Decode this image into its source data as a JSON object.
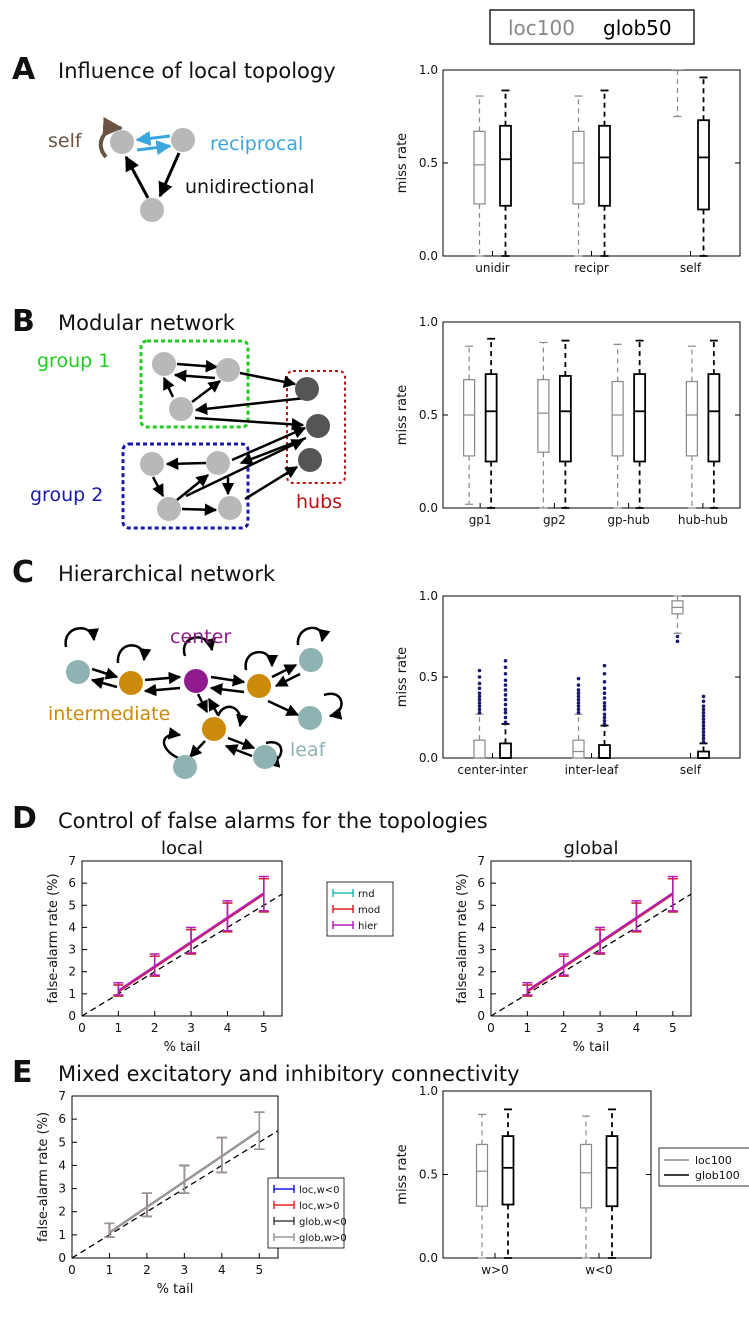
{
  "header_legend": {
    "loc": "loc100",
    "glob": "glob50"
  },
  "panels": {
    "A": {
      "letter": "A",
      "title": "Influence of local topology"
    },
    "B": {
      "letter": "B",
      "title": "Modular network"
    },
    "C": {
      "letter": "C",
      "title": "Hierarchical network"
    },
    "D": {
      "letter": "D",
      "title": "Control of false alarms for the topologies"
    },
    "E": {
      "letter": "E",
      "title": "Mixed excitatory and inhibitory connectivity"
    }
  },
  "diagrams": {
    "A": {
      "self": "self",
      "reciprocal": "reciprocal",
      "unidirectional": "unidirectional"
    },
    "B": {
      "group1": "group 1",
      "group2": "group 2",
      "hubs": "hubs"
    },
    "C": {
      "center": "center",
      "intermediate": "intermediate",
      "leaf": "leaf"
    }
  },
  "colors": {
    "loc": "#888888",
    "glob": "#000000",
    "reciprocal": "#3aa6dd",
    "self": "#6b5344",
    "group1": "#22cc22",
    "group2": "#1a1aaa",
    "hubs": "#bb1111",
    "center": "#8e1a8e",
    "intermediate": "#cc8a0a",
    "leaf": "#8fb3b3",
    "node_grey": "#b8b8b8",
    "hub_node": "#555555",
    "rnd": "#22bbbb",
    "mod": "#dd2222",
    "hier": "#b81cb8",
    "loc_wneg": "#1a1aee",
    "loc_wpos": "#ee2222",
    "glob_wneg": "#444444",
    "glob_wpos": "#999999"
  },
  "chart_data": [
    {
      "id": "A",
      "type": "box",
      "ylabel": "miss rate",
      "ylim": [
        0,
        1
      ],
      "yticks": [
        0.0,
        0.5,
        1.0
      ],
      "yticklabels": [
        "0.0",
        "0.5",
        "1.0"
      ],
      "categories": [
        "unidir",
        "recipr",
        "self"
      ],
      "series": [
        {
          "name": "loc100",
          "boxes": [
            {
              "whislo": 0.0,
              "q1": 0.28,
              "med": 0.49,
              "q3": 0.67,
              "whishi": 0.86
            },
            {
              "whislo": 0.0,
              "q1": 0.28,
              "med": 0.5,
              "q3": 0.67,
              "whishi": 0.86
            },
            {
              "whislo": 0.75,
              "q1": 1.0,
              "med": 1.0,
              "q3": 1.0,
              "whishi": 1.0
            }
          ]
        },
        {
          "name": "glob50",
          "boxes": [
            {
              "whislo": 0.0,
              "q1": 0.27,
              "med": 0.52,
              "q3": 0.7,
              "whishi": 0.89
            },
            {
              "whislo": 0.0,
              "q1": 0.27,
              "med": 0.53,
              "q3": 0.7,
              "whishi": 0.89
            },
            {
              "whislo": 0.0,
              "q1": 0.25,
              "med": 0.53,
              "q3": 0.73,
              "whishi": 0.96
            }
          ]
        }
      ]
    },
    {
      "id": "B",
      "type": "box",
      "ylabel": "miss rate",
      "ylim": [
        0,
        1
      ],
      "yticks": [
        0.0,
        0.5,
        1.0
      ],
      "yticklabels": [
        "0.0",
        "0.5",
        "1.0"
      ],
      "categories": [
        "gp1",
        "gp2",
        "gp-hub",
        "hub-hub"
      ],
      "series": [
        {
          "name": "loc100",
          "boxes": [
            {
              "whislo": 0.02,
              "q1": 0.28,
              "med": 0.5,
              "q3": 0.69,
              "whishi": 0.87
            },
            {
              "whislo": 0.0,
              "q1": 0.3,
              "med": 0.51,
              "q3": 0.69,
              "whishi": 0.89
            },
            {
              "whislo": 0.0,
              "q1": 0.28,
              "med": 0.5,
              "q3": 0.68,
              "whishi": 0.88
            },
            {
              "whislo": 0.0,
              "q1": 0.28,
              "med": 0.5,
              "q3": 0.68,
              "whishi": 0.87
            }
          ]
        },
        {
          "name": "glob50",
          "boxes": [
            {
              "whislo": 0.0,
              "q1": 0.25,
              "med": 0.52,
              "q3": 0.72,
              "whishi": 0.91
            },
            {
              "whislo": 0.0,
              "q1": 0.25,
              "med": 0.52,
              "q3": 0.71,
              "whishi": 0.9
            },
            {
              "whislo": 0.0,
              "q1": 0.25,
              "med": 0.52,
              "q3": 0.72,
              "whishi": 0.9
            },
            {
              "whislo": 0.0,
              "q1": 0.25,
              "med": 0.52,
              "q3": 0.72,
              "whishi": 0.9
            }
          ]
        }
      ]
    },
    {
      "id": "C",
      "type": "box",
      "ylabel": "miss rate",
      "ylim": [
        0,
        1
      ],
      "yticks": [
        0.0,
        0.5,
        1.0
      ],
      "yticklabels": [
        "0.0",
        "0.5",
        "1.0"
      ],
      "categories": [
        "center-inter",
        "inter-leaf",
        "self"
      ],
      "series": [
        {
          "name": "loc100",
          "boxes": [
            {
              "whislo": 0.0,
              "q1": 0.0,
              "med": 0.0,
              "q3": 0.11,
              "whishi": 0.27,
              "fliers": [
                0.28,
                0.3,
                0.32,
                0.34,
                0.36,
                0.38,
                0.4,
                0.43,
                0.46,
                0.5,
                0.54
              ]
            },
            {
              "whislo": 0.0,
              "q1": 0.0,
              "med": 0.04,
              "q3": 0.11,
              "whishi": 0.27,
              "fliers": [
                0.28,
                0.3,
                0.32,
                0.34,
                0.36,
                0.38,
                0.4,
                0.42,
                0.45,
                0.49
              ]
            },
            {
              "whislo": 0.77,
              "q1": 0.89,
              "med": 0.93,
              "q3": 0.97,
              "whishi": 1.0,
              "fliers": [
                0.72,
                0.75
              ]
            }
          ]
        },
        {
          "name": "glob50",
          "boxes": [
            {
              "whislo": 0.0,
              "q1": 0.0,
              "med": 0.0,
              "q3": 0.09,
              "whishi": 0.21,
              "fliers": [
                0.22,
                0.25,
                0.28,
                0.3,
                0.33,
                0.36,
                0.39,
                0.42,
                0.45,
                0.48,
                0.52,
                0.56,
                0.6
              ]
            },
            {
              "whislo": 0.0,
              "q1": 0.0,
              "med": 0.0,
              "q3": 0.08,
              "whishi": 0.2,
              "fliers": [
                0.21,
                0.23,
                0.25,
                0.27,
                0.3,
                0.32,
                0.34,
                0.37,
                0.4,
                0.43,
                0.47,
                0.52,
                0.57
              ]
            },
            {
              "whislo": 0.0,
              "q1": 0.0,
              "med": 0.0,
              "q3": 0.04,
              "whishi": 0.09,
              "fliers": [
                0.1,
                0.12,
                0.14,
                0.16,
                0.18,
                0.2,
                0.22,
                0.24,
                0.26,
                0.28,
                0.3,
                0.32,
                0.35,
                0.38
              ]
            }
          ]
        }
      ]
    },
    {
      "id": "D-local",
      "type": "line",
      "title": "local",
      "xlabel": "% tail",
      "ylabel": "false-alarm rate (%)",
      "xlim": [
        0,
        5.5
      ],
      "ylim": [
        0,
        7
      ],
      "xticks": [
        0,
        1,
        2,
        3,
        4,
        5
      ],
      "yticks": [
        0,
        1,
        2,
        3,
        4,
        5,
        6,
        7
      ],
      "x": [
        1,
        2,
        3,
        4,
        5
      ],
      "reference_line": {
        "style": "dashed",
        "x": [
          0,
          5.5
        ],
        "y": [
          0,
          5.5
        ]
      },
      "series": [
        {
          "name": "rnd",
          "y": [
            1.1,
            2.2,
            3.3,
            4.4,
            5.5
          ],
          "ylow": [
            0.9,
            1.8,
            2.8,
            3.8,
            4.7
          ],
          "yhigh": [
            1.4,
            2.7,
            3.9,
            5.1,
            6.2
          ]
        },
        {
          "name": "mod",
          "y": [
            1.1,
            2.2,
            3.3,
            4.4,
            5.5
          ],
          "ylow": [
            0.9,
            1.8,
            2.8,
            3.8,
            4.7
          ],
          "yhigh": [
            1.4,
            2.7,
            3.9,
            5.1,
            6.2
          ]
        },
        {
          "name": "hier",
          "y": [
            1.15,
            2.25,
            3.35,
            4.45,
            5.55
          ],
          "ylow": [
            0.95,
            1.85,
            2.85,
            3.85,
            4.75
          ],
          "yhigh": [
            1.5,
            2.8,
            4.0,
            5.2,
            6.3
          ]
        }
      ]
    },
    {
      "id": "D-global",
      "type": "line",
      "title": "global",
      "xlabel": "% tail",
      "ylabel": "false-alarm rate (%)",
      "xlim": [
        0,
        5.5
      ],
      "ylim": [
        0,
        7
      ],
      "xticks": [
        0,
        1,
        2,
        3,
        4,
        5
      ],
      "yticks": [
        0,
        1,
        2,
        3,
        4,
        5,
        6,
        7
      ],
      "x": [
        1,
        2,
        3,
        4,
        5
      ],
      "reference_line": {
        "style": "dashed",
        "x": [
          0,
          5.5
        ],
        "y": [
          0,
          5.5
        ]
      },
      "series": [
        {
          "name": "rnd",
          "y": [
            1.1,
            2.2,
            3.3,
            4.4,
            5.5
          ],
          "ylow": [
            0.9,
            1.8,
            2.8,
            3.8,
            4.7
          ],
          "yhigh": [
            1.4,
            2.7,
            3.9,
            5.1,
            6.2
          ]
        },
        {
          "name": "mod",
          "y": [
            1.1,
            2.2,
            3.3,
            4.4,
            5.5
          ],
          "ylow": [
            0.9,
            1.8,
            2.8,
            3.8,
            4.7
          ],
          "yhigh": [
            1.4,
            2.7,
            3.9,
            5.1,
            6.2
          ]
        },
        {
          "name": "hier",
          "y": [
            1.15,
            2.25,
            3.35,
            4.45,
            5.55
          ],
          "ylow": [
            0.95,
            1.85,
            2.85,
            3.85,
            4.75
          ],
          "yhigh": [
            1.5,
            2.8,
            4.0,
            5.2,
            6.3
          ]
        }
      ]
    },
    {
      "id": "E-fa",
      "type": "line",
      "xlabel": "% tail",
      "ylabel": "false-alarm rate (%)",
      "xlim": [
        0,
        5.5
      ],
      "ylim": [
        0,
        7
      ],
      "xticks": [
        0,
        1,
        2,
        3,
        4,
        5
      ],
      "yticks": [
        0,
        1,
        2,
        3,
        4,
        5,
        6,
        7
      ],
      "x": [
        1,
        2,
        3,
        4,
        5
      ],
      "reference_line": {
        "style": "dashed",
        "x": [
          0,
          5.5
        ],
        "y": [
          0,
          5.5
        ]
      },
      "series": [
        {
          "name": "loc,w<0",
          "y": [
            1.1,
            2.2,
            3.3,
            4.4,
            5.5
          ],
          "ylow": [
            0.9,
            1.8,
            2.8,
            3.7,
            4.7
          ],
          "yhigh": [
            1.5,
            2.8,
            4.0,
            5.2,
            6.3
          ]
        },
        {
          "name": "loc,w>0",
          "y": [
            1.1,
            2.2,
            3.3,
            4.4,
            5.5
          ],
          "ylow": [
            0.9,
            1.8,
            2.8,
            3.7,
            4.7
          ],
          "yhigh": [
            1.5,
            2.8,
            4.0,
            5.2,
            6.3
          ]
        },
        {
          "name": "glob,w<0",
          "y": [
            1.1,
            2.2,
            3.3,
            4.4,
            5.5
          ],
          "ylow": [
            0.9,
            1.8,
            2.8,
            3.7,
            4.7
          ],
          "yhigh": [
            1.5,
            2.8,
            4.0,
            5.2,
            6.3
          ]
        },
        {
          "name": "glob,w>0",
          "y": [
            1.1,
            2.2,
            3.3,
            4.4,
            5.5
          ],
          "ylow": [
            0.9,
            1.8,
            2.8,
            3.7,
            4.7
          ],
          "yhigh": [
            1.5,
            2.8,
            4.0,
            5.2,
            6.3
          ]
        }
      ]
    },
    {
      "id": "E-miss",
      "type": "box",
      "ylabel": "miss rate",
      "ylim": [
        0,
        1
      ],
      "yticks": [
        0.0,
        0.5,
        1.0
      ],
      "yticklabels": [
        "0.0",
        "0.5",
        "1.0"
      ],
      "categories": [
        "w>0",
        "w<0"
      ],
      "legend": [
        "loc100",
        "glob100"
      ],
      "series": [
        {
          "name": "loc100",
          "boxes": [
            {
              "whislo": 0.0,
              "q1": 0.31,
              "med": 0.52,
              "q3": 0.68,
              "whishi": 0.86
            },
            {
              "whislo": 0.0,
              "q1": 0.3,
              "med": 0.51,
              "q3": 0.68,
              "whishi": 0.85
            }
          ]
        },
        {
          "name": "glob100",
          "boxes": [
            {
              "whislo": 0.0,
              "q1": 0.32,
              "med": 0.54,
              "q3": 0.73,
              "whishi": 0.89
            },
            {
              "whislo": 0.0,
              "q1": 0.31,
              "med": 0.54,
              "q3": 0.73,
              "whishi": 0.89
            }
          ]
        }
      ]
    }
  ]
}
